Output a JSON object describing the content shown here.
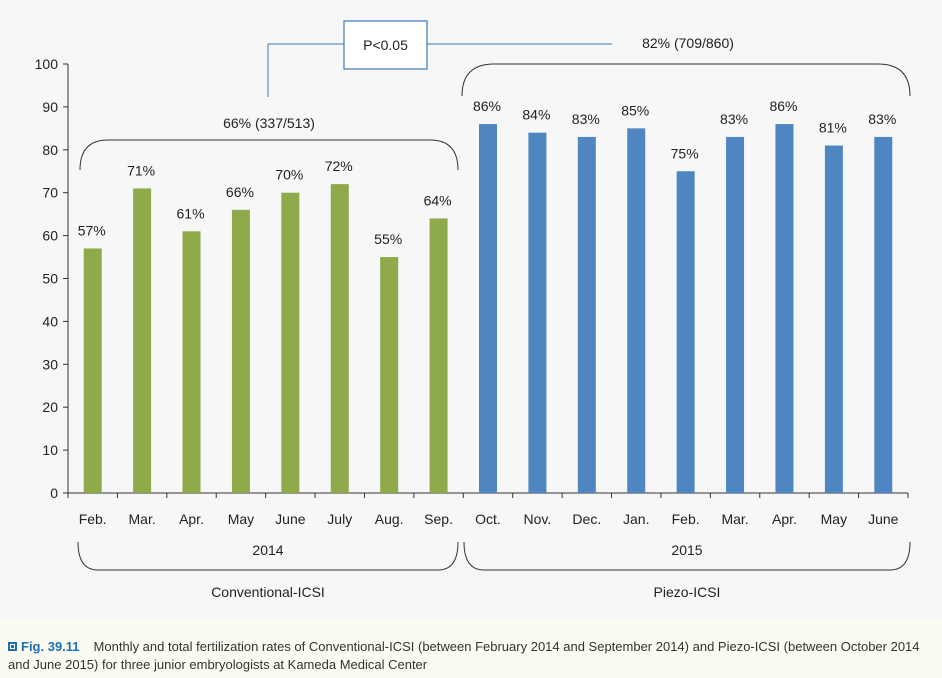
{
  "chart_data": {
    "type": "bar",
    "xlabel": "",
    "ylabel": "",
    "ylim": [
      0,
      100
    ],
    "yticks": [
      0,
      10,
      20,
      30,
      40,
      50,
      60,
      70,
      80,
      90,
      100
    ],
    "grid": false,
    "categories": [
      "Feb.",
      "Mar.",
      "Apr.",
      "May",
      "June",
      "July",
      "Aug.",
      "Sep.",
      "Oct.",
      "Nov.",
      "Dec.",
      "Jan.",
      "Feb.",
      "Mar.",
      "Apr.",
      "May",
      "June"
    ],
    "values": [
      57,
      71,
      61,
      66,
      70,
      72,
      55,
      64,
      86,
      84,
      83,
      85,
      75,
      83,
      86,
      81,
      83
    ],
    "data_labels": [
      "57%",
      "71%",
      "61%",
      "66%",
      "70%",
      "72%",
      "55%",
      "64%",
      "86%",
      "84%",
      "83%",
      "85%",
      "75%",
      "83%",
      "86%",
      "81%",
      "83%"
    ],
    "groups": [
      {
        "year": "2014",
        "method": "Conventional-ICSI",
        "total": "66% (337/513)",
        "color": "#8faa4b",
        "count": 8
      },
      {
        "year": "2015",
        "method": "Piezo-ICSI",
        "total": "82% (709/860)",
        "color": "#4f86c1",
        "count": 9
      }
    ],
    "significance": "P<0.05"
  },
  "caption": {
    "label": "Fig. 39.11",
    "text": "Monthly and total fertilization rates of Conventional-ICSI (between February 2014 and September 2014) and Piezo-ICSI (between October 2014 and June 2015) for three junior embryologists at Kameda Medical Center"
  },
  "colors": {
    "conventional": "#8faa4b",
    "piezo": "#4f86c1",
    "accent": "#1f6fb5"
  }
}
